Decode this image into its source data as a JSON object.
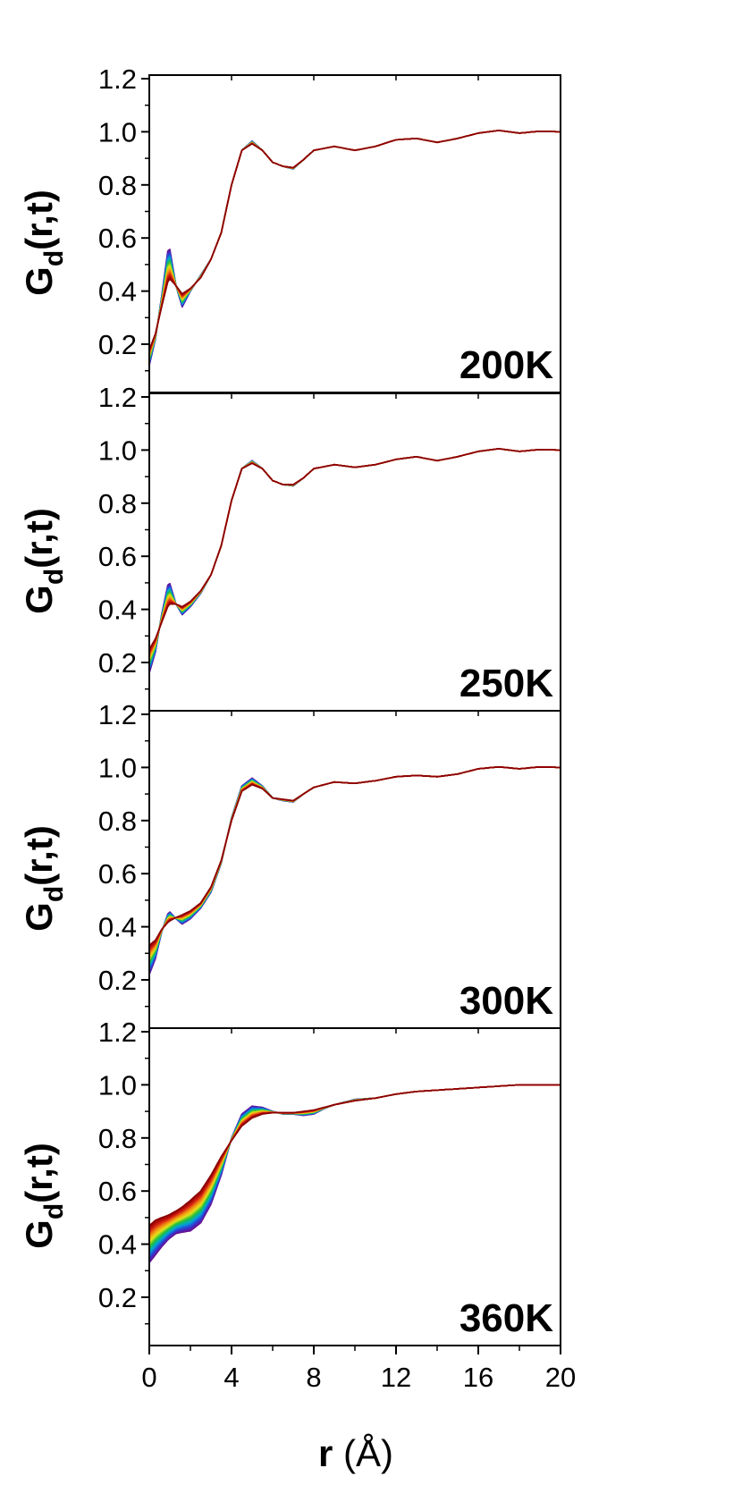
{
  "chart_data": {
    "type": "line",
    "xlabel_main": "r",
    "xlabel_unit": " (Å)",
    "ylabel_main": "G",
    "ylabel_sub": "d",
    "ylabel_tail": "(r,t)",
    "xlim": [
      0,
      20
    ],
    "x_ticks": [
      0,
      4,
      8,
      12,
      16,
      20
    ],
    "x_tick_labels": [
      "0",
      "4",
      "8",
      "12",
      "16",
      "20"
    ],
    "ylim": [
      0.05,
      1.2
    ],
    "y_ticks": [
      0.2,
      0.4,
      0.6,
      0.8,
      1.0,
      1.2
    ],
    "y_tick_labels": [
      "0.2",
      "0.4",
      "0.6",
      "0.8",
      "1.0",
      "1.2"
    ],
    "color_scale": [
      "#6a0d91",
      "#2b3fd6",
      "#00a6d6",
      "#1fbf3a",
      "#e8e21a",
      "#f28c12",
      "#d41a12",
      "#8b0000"
    ],
    "panels": [
      {
        "label": "200K",
        "series_early": [
          [
            0,
            0.12
          ],
          [
            0.3,
            0.22
          ],
          [
            0.6,
            0.38
          ],
          [
            0.95,
            0.58
          ],
          [
            1.3,
            0.42
          ],
          [
            1.6,
            0.34
          ],
          [
            2.0,
            0.4
          ],
          [
            2.5,
            0.46
          ],
          [
            3.0,
            0.52
          ],
          [
            3.5,
            0.62
          ],
          [
            4.0,
            0.8
          ],
          [
            4.5,
            0.93
          ],
          [
            5.0,
            0.965
          ],
          [
            5.5,
            0.93
          ],
          [
            6.0,
            0.885
          ],
          [
            6.5,
            0.87
          ],
          [
            7.0,
            0.86
          ],
          [
            7.5,
            0.895
          ],
          [
            8.0,
            0.93
          ],
          [
            9.0,
            0.945
          ],
          [
            10.0,
            0.93
          ],
          [
            11.0,
            0.945
          ],
          [
            12.0,
            0.97
          ],
          [
            13.0,
            0.975
          ],
          [
            14.0,
            0.96
          ],
          [
            15.0,
            0.975
          ],
          [
            16.0,
            0.995
          ],
          [
            17.0,
            1.005
          ],
          [
            18.0,
            0.995
          ],
          [
            19.0,
            1.002
          ],
          [
            20.0,
            1.0
          ]
        ],
        "series_late": [
          [
            0,
            0.18
          ],
          [
            0.3,
            0.24
          ],
          [
            0.6,
            0.34
          ],
          [
            0.95,
            0.45
          ],
          [
            1.3,
            0.42
          ],
          [
            1.6,
            0.39
          ],
          [
            2.0,
            0.41
          ],
          [
            2.5,
            0.45
          ],
          [
            3.0,
            0.52
          ],
          [
            3.5,
            0.62
          ],
          [
            4.0,
            0.8
          ],
          [
            4.5,
            0.93
          ],
          [
            5.0,
            0.955
          ],
          [
            5.5,
            0.93
          ],
          [
            6.0,
            0.885
          ],
          [
            6.5,
            0.87
          ],
          [
            7.0,
            0.865
          ],
          [
            7.5,
            0.895
          ],
          [
            8.0,
            0.93
          ],
          [
            9.0,
            0.945
          ],
          [
            10.0,
            0.93
          ],
          [
            11.0,
            0.945
          ],
          [
            12.0,
            0.97
          ],
          [
            13.0,
            0.975
          ],
          [
            14.0,
            0.96
          ],
          [
            15.0,
            0.975
          ],
          [
            16.0,
            0.995
          ],
          [
            17.0,
            1.005
          ],
          [
            18.0,
            0.995
          ],
          [
            19.0,
            1.002
          ],
          [
            20.0,
            1.0
          ]
        ]
      },
      {
        "label": "250K",
        "series_early": [
          [
            0,
            0.16
          ],
          [
            0.3,
            0.24
          ],
          [
            0.6,
            0.38
          ],
          [
            0.95,
            0.51
          ],
          [
            1.3,
            0.42
          ],
          [
            1.6,
            0.38
          ],
          [
            2.0,
            0.41
          ],
          [
            2.5,
            0.46
          ],
          [
            3.0,
            0.53
          ],
          [
            3.5,
            0.64
          ],
          [
            4.0,
            0.81
          ],
          [
            4.5,
            0.93
          ],
          [
            5.0,
            0.96
          ],
          [
            5.5,
            0.93
          ],
          [
            6.0,
            0.885
          ],
          [
            6.5,
            0.87
          ],
          [
            7.0,
            0.865
          ],
          [
            7.5,
            0.895
          ],
          [
            8.0,
            0.93
          ],
          [
            9.0,
            0.945
          ],
          [
            10.0,
            0.935
          ],
          [
            11.0,
            0.945
          ],
          [
            12.0,
            0.965
          ],
          [
            13.0,
            0.975
          ],
          [
            14.0,
            0.96
          ],
          [
            15.0,
            0.975
          ],
          [
            16.0,
            0.995
          ],
          [
            17.0,
            1.005
          ],
          [
            18.0,
            0.995
          ],
          [
            19.0,
            1.002
          ],
          [
            20.0,
            1.0
          ]
        ],
        "series_late": [
          [
            0,
            0.25
          ],
          [
            0.3,
            0.29
          ],
          [
            0.6,
            0.35
          ],
          [
            0.95,
            0.42
          ],
          [
            1.3,
            0.42
          ],
          [
            1.6,
            0.41
          ],
          [
            2.0,
            0.43
          ],
          [
            2.5,
            0.47
          ],
          [
            3.0,
            0.53
          ],
          [
            3.5,
            0.64
          ],
          [
            4.0,
            0.81
          ],
          [
            4.5,
            0.93
          ],
          [
            5.0,
            0.95
          ],
          [
            5.5,
            0.93
          ],
          [
            6.0,
            0.885
          ],
          [
            6.5,
            0.87
          ],
          [
            7.0,
            0.87
          ],
          [
            7.5,
            0.895
          ],
          [
            8.0,
            0.93
          ],
          [
            9.0,
            0.945
          ],
          [
            10.0,
            0.935
          ],
          [
            11.0,
            0.945
          ],
          [
            12.0,
            0.965
          ],
          [
            13.0,
            0.975
          ],
          [
            14.0,
            0.96
          ],
          [
            15.0,
            0.975
          ],
          [
            16.0,
            0.995
          ],
          [
            17.0,
            1.005
          ],
          [
            18.0,
            0.995
          ],
          [
            19.0,
            1.002
          ],
          [
            20.0,
            1.0
          ]
        ]
      },
      {
        "label": "300K",
        "series_early": [
          [
            0,
            0.22
          ],
          [
            0.3,
            0.28
          ],
          [
            0.6,
            0.38
          ],
          [
            0.95,
            0.46
          ],
          [
            1.3,
            0.43
          ],
          [
            1.6,
            0.41
          ],
          [
            2.0,
            0.43
          ],
          [
            2.5,
            0.47
          ],
          [
            3.0,
            0.53
          ],
          [
            3.5,
            0.64
          ],
          [
            4.0,
            0.81
          ],
          [
            4.5,
            0.93
          ],
          [
            5.0,
            0.96
          ],
          [
            5.5,
            0.93
          ],
          [
            6.0,
            0.885
          ],
          [
            6.5,
            0.875
          ],
          [
            7.0,
            0.87
          ],
          [
            7.5,
            0.9
          ],
          [
            8.0,
            0.925
          ],
          [
            9.0,
            0.945
          ],
          [
            10.0,
            0.94
          ],
          [
            11.0,
            0.95
          ],
          [
            12.0,
            0.965
          ],
          [
            13.0,
            0.97
          ],
          [
            14.0,
            0.965
          ],
          [
            15.0,
            0.975
          ],
          [
            16.0,
            0.995
          ],
          [
            17.0,
            1.002
          ],
          [
            18.0,
            0.995
          ],
          [
            19.0,
            1.002
          ],
          [
            20.0,
            1.0
          ]
        ],
        "series_late": [
          [
            0,
            0.33
          ],
          [
            0.3,
            0.35
          ],
          [
            0.6,
            0.39
          ],
          [
            0.95,
            0.42
          ],
          [
            1.3,
            0.435
          ],
          [
            1.6,
            0.445
          ],
          [
            2.0,
            0.46
          ],
          [
            2.5,
            0.49
          ],
          [
            3.0,
            0.55
          ],
          [
            3.5,
            0.65
          ],
          [
            4.0,
            0.8
          ],
          [
            4.5,
            0.91
          ],
          [
            5.0,
            0.935
          ],
          [
            5.5,
            0.92
          ],
          [
            6.0,
            0.885
          ],
          [
            6.5,
            0.88
          ],
          [
            7.0,
            0.875
          ],
          [
            7.5,
            0.9
          ],
          [
            8.0,
            0.925
          ],
          [
            9.0,
            0.945
          ],
          [
            10.0,
            0.94
          ],
          [
            11.0,
            0.95
          ],
          [
            12.0,
            0.965
          ],
          [
            13.0,
            0.97
          ],
          [
            14.0,
            0.965
          ],
          [
            15.0,
            0.975
          ],
          [
            16.0,
            0.995
          ],
          [
            17.0,
            1.002
          ],
          [
            18.0,
            0.995
          ],
          [
            19.0,
            1.002
          ],
          [
            20.0,
            1.0
          ]
        ]
      },
      {
        "label": "360K",
        "series_early": [
          [
            0,
            0.33
          ],
          [
            0.3,
            0.36
          ],
          [
            0.6,
            0.39
          ],
          [
            0.95,
            0.42
          ],
          [
            1.3,
            0.44
          ],
          [
            1.6,
            0.445
          ],
          [
            2.0,
            0.45
          ],
          [
            2.5,
            0.48
          ],
          [
            3.0,
            0.55
          ],
          [
            3.5,
            0.66
          ],
          [
            4.0,
            0.8
          ],
          [
            4.5,
            0.89
          ],
          [
            5.0,
            0.92
          ],
          [
            5.5,
            0.915
          ],
          [
            6.0,
            0.9
          ],
          [
            6.5,
            0.89
          ],
          [
            7.0,
            0.89
          ],
          [
            7.5,
            0.885
          ],
          [
            8.0,
            0.89
          ],
          [
            8.5,
            0.91
          ],
          [
            9.0,
            0.925
          ],
          [
            10.0,
            0.945
          ],
          [
            11.0,
            0.95
          ],
          [
            12.0,
            0.965
          ],
          [
            13.0,
            0.975
          ],
          [
            14.0,
            0.98
          ],
          [
            15.0,
            0.985
          ],
          [
            16.0,
            0.99
          ],
          [
            17.0,
            0.995
          ],
          [
            18.0,
            1.0
          ],
          [
            19.0,
            1.0
          ],
          [
            20.0,
            1.0
          ]
        ],
        "series_late": [
          [
            0,
            0.47
          ],
          [
            0.3,
            0.49
          ],
          [
            0.6,
            0.5
          ],
          [
            0.95,
            0.51
          ],
          [
            1.3,
            0.525
          ],
          [
            1.6,
            0.54
          ],
          [
            2.0,
            0.565
          ],
          [
            2.5,
            0.6
          ],
          [
            3.0,
            0.66
          ],
          [
            3.5,
            0.73
          ],
          [
            4.0,
            0.79
          ],
          [
            4.5,
            0.845
          ],
          [
            5.0,
            0.875
          ],
          [
            5.5,
            0.89
          ],
          [
            6.0,
            0.895
          ],
          [
            6.5,
            0.895
          ],
          [
            7.0,
            0.895
          ],
          [
            7.5,
            0.9
          ],
          [
            8.0,
            0.905
          ],
          [
            8.5,
            0.915
          ],
          [
            9.0,
            0.925
          ],
          [
            10.0,
            0.94
          ],
          [
            11.0,
            0.95
          ],
          [
            12.0,
            0.965
          ],
          [
            13.0,
            0.975
          ],
          [
            14.0,
            0.98
          ],
          [
            15.0,
            0.985
          ],
          [
            16.0,
            0.99
          ],
          [
            17.0,
            0.995
          ],
          [
            18.0,
            1.0
          ],
          [
            19.0,
            1.0
          ],
          [
            20.0,
            1.0
          ]
        ]
      }
    ]
  }
}
